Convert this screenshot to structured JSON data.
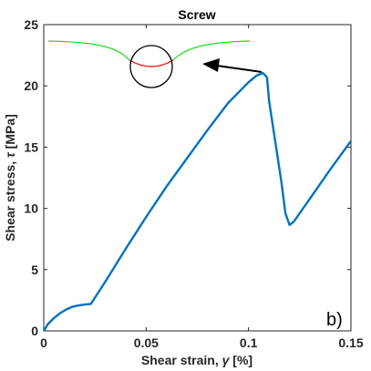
{
  "chart_data": {
    "type": "line",
    "title": "Screw",
    "xlabel_main": "Shear strain, ",
    "xlabel_symbol": "γ",
    "xlabel_unit": " [%]",
    "ylabel_main": "Shear stress, ",
    "ylabel_symbol": "τ",
    "ylabel_unit": " [MPa]",
    "xlim": [
      0,
      0.15
    ],
    "ylim": [
      0,
      25
    ],
    "xticks": [
      0,
      0.05,
      0.1,
      0.15
    ],
    "xtick_labels": [
      "0",
      "0.05",
      "0.1",
      "0.15"
    ],
    "yticks": [
      0,
      5,
      10,
      15,
      20,
      25
    ],
    "ytick_labels": [
      "0",
      "5",
      "10",
      "15",
      "20",
      "25"
    ],
    "grid": false,
    "panel_label": "b)",
    "series": [
      {
        "color": "#0072BD",
        "x": [
          0,
          0.002,
          0.005,
          0.008,
          0.011,
          0.014,
          0.017,
          0.02,
          0.023,
          0.03,
          0.04,
          0.05,
          0.06,
          0.07,
          0.08,
          0.09,
          0.1,
          0.104,
          0.107,
          0.109,
          0.11,
          0.113,
          0.116,
          0.118,
          0.12,
          0.122,
          0.13,
          0.14,
          0.15
        ],
        "y": [
          0,
          0.55,
          1.05,
          1.45,
          1.75,
          1.97,
          2.08,
          2.15,
          2.2,
          4.0,
          6.7,
          9.3,
          11.8,
          14.1,
          16.4,
          18.6,
          20.3,
          20.85,
          21.05,
          20.7,
          18.8,
          15.5,
          12.2,
          9.6,
          8.65,
          8.9,
          10.8,
          13.2,
          15.5
        ]
      }
    ],
    "inset_colors": {
      "curve": "#22dd22",
      "highlight": "#ff0000",
      "circle": "#000000",
      "arrow": "#000000"
    }
  }
}
